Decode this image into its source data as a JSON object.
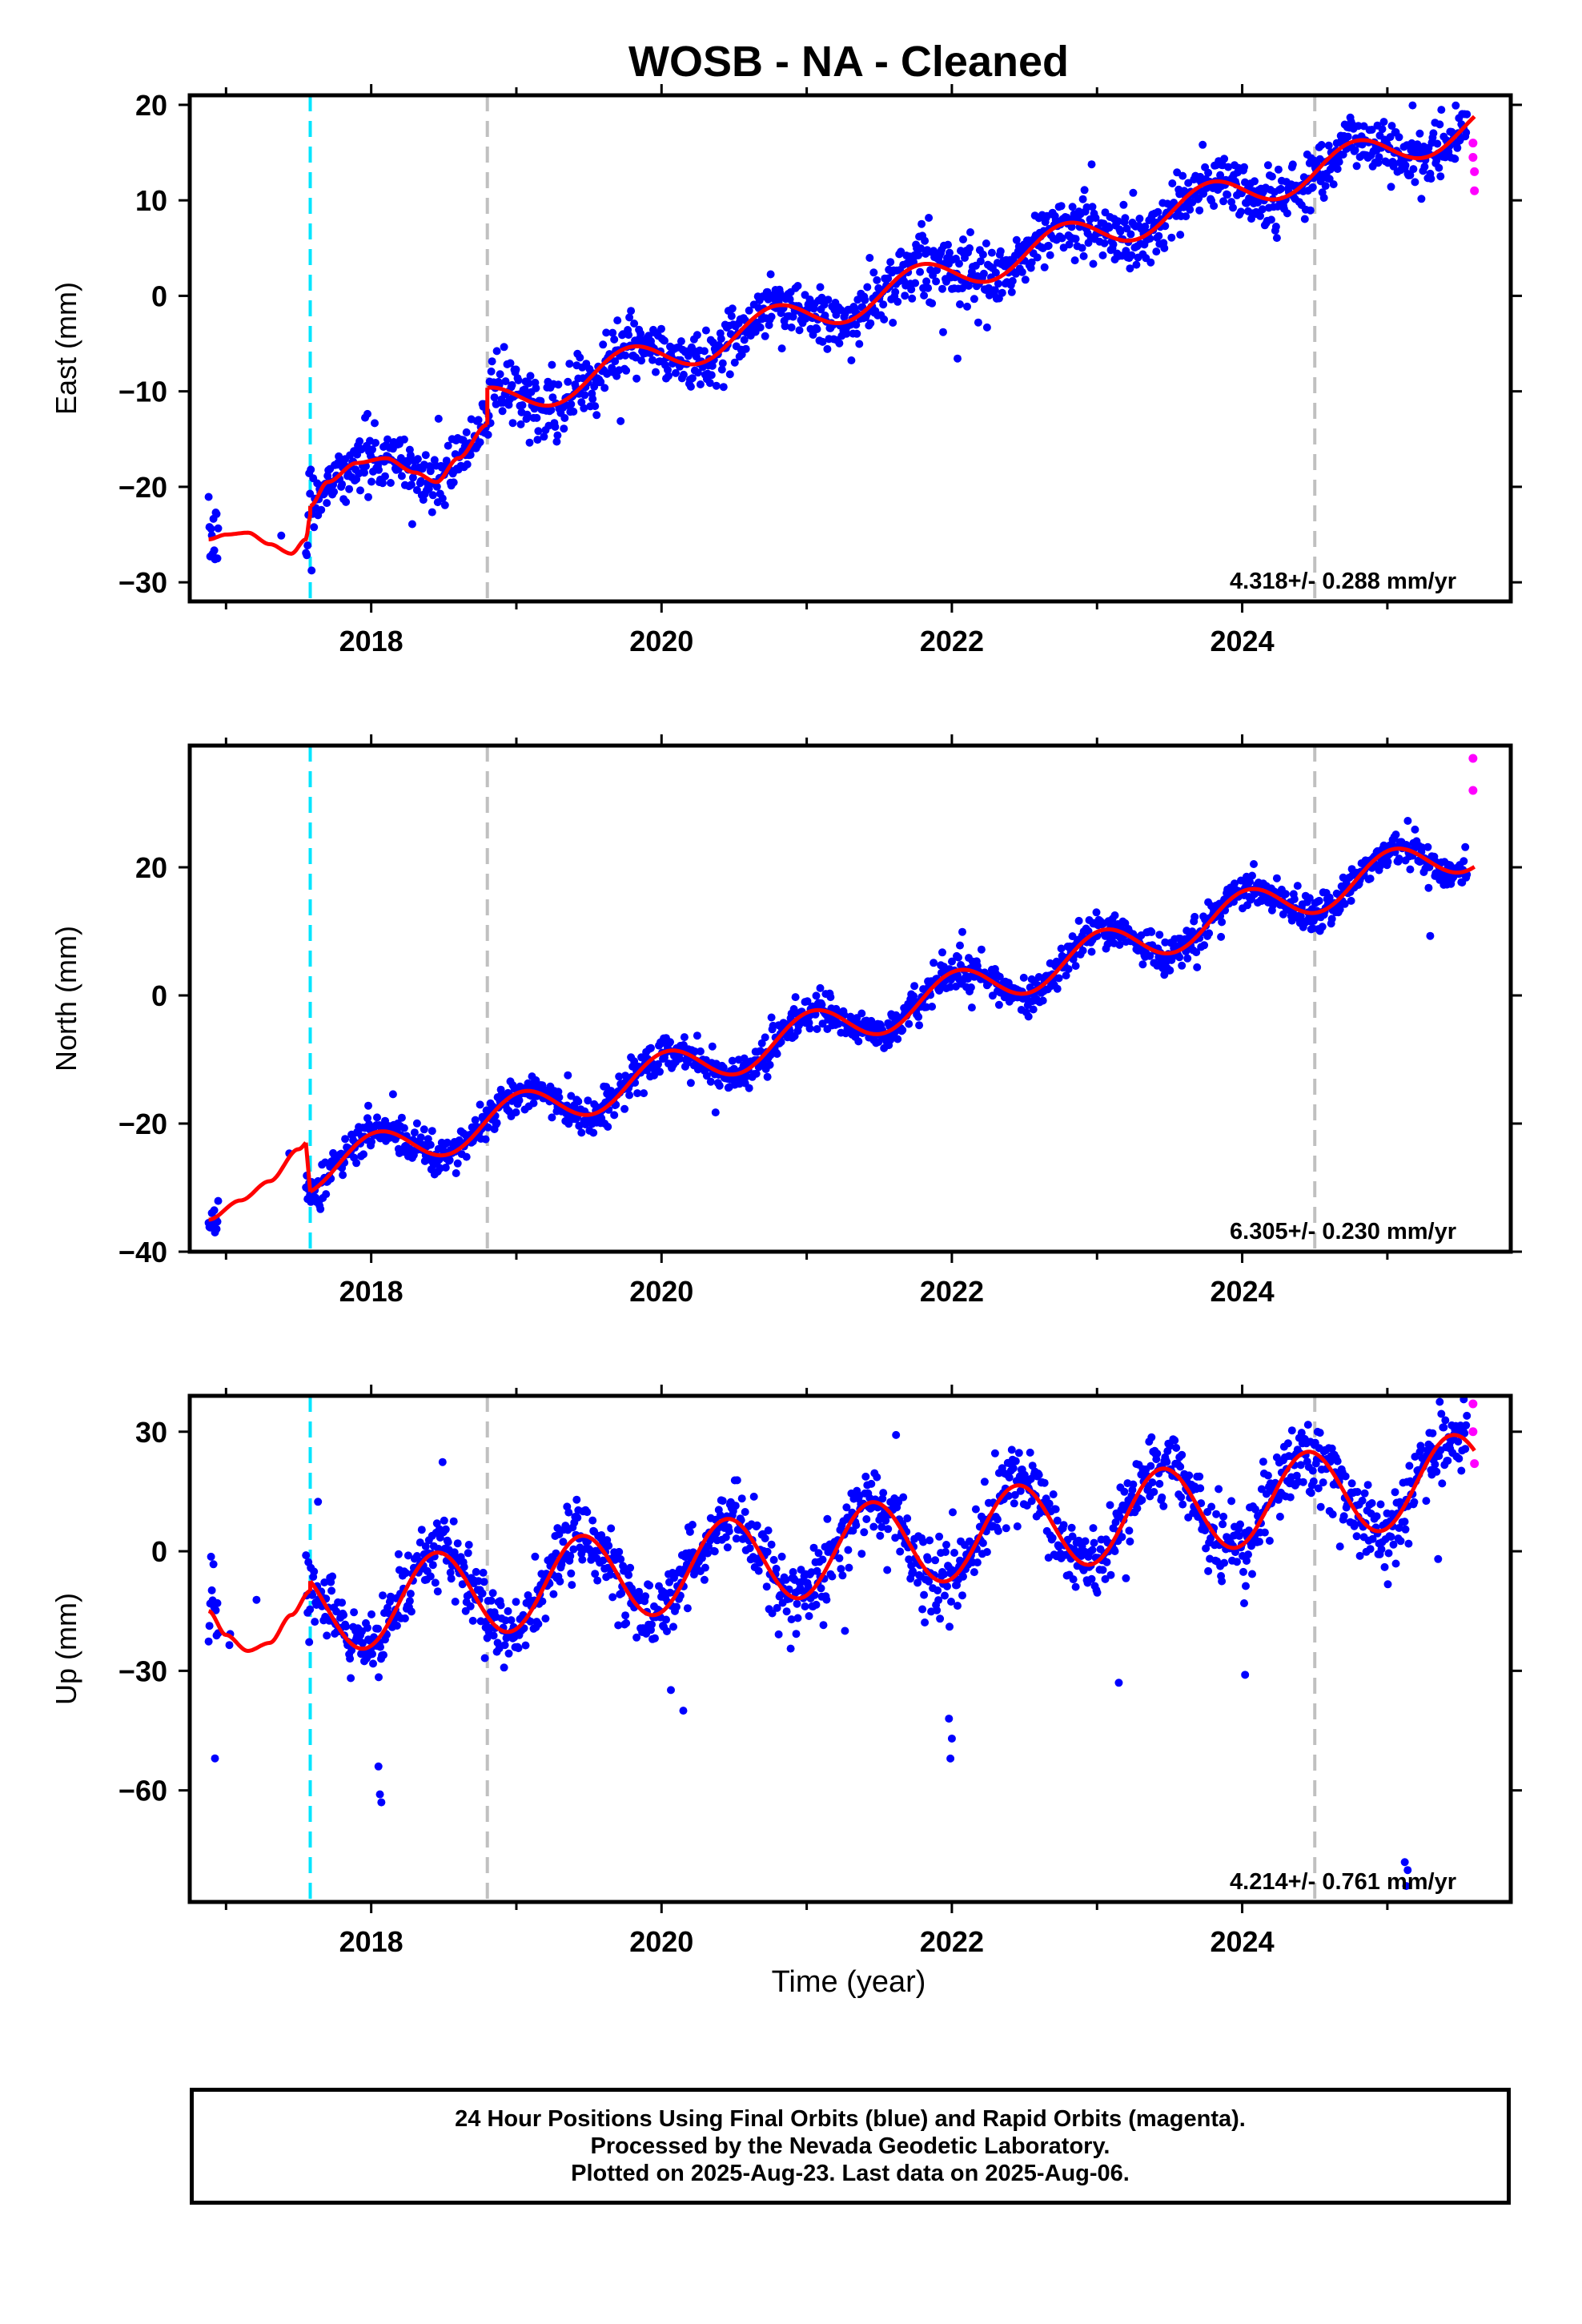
{
  "title": "WOSB  - NA - Cleaned",
  "colors": {
    "final_orbits": "#0000ff",
    "rapid_orbits": "#ff00ff",
    "model_fit": "#ff0000",
    "antenna_change": "#00e5ff",
    "equipment_change": "#c0c0c0"
  },
  "xlabel": "Time (year)",
  "footer": {
    "line1": "24 Hour Positions Using Final Orbits (blue) and Rapid Orbits (magenta).",
    "line2": "Processed by the Nevada Geodetic Laboratory.",
    "line3": "Plotted on 2025-Aug-23. Last data on 2025-Aug-06."
  },
  "chart_data": [
    {
      "type": "scatter",
      "component": "east",
      "ylabel": "East (mm)",
      "velocity_label": "4.318+/- 0.288 mm/yr",
      "xlim": [
        2016.75,
        2025.85
      ],
      "ylim": [
        -32,
        21
      ],
      "yticks": [
        -30,
        -20,
        -10,
        0,
        10,
        20
      ],
      "xticks": [
        2018,
        2020,
        2022,
        2024
      ],
      "vlines": [
        {
          "x": 2017.58,
          "style": "cyan-dashed"
        },
        {
          "x": 2018.8,
          "style": "gray-dashed"
        },
        {
          "x": 2024.5,
          "style": "gray-dashed"
        }
      ],
      "model_fit": {
        "segments": [
          {
            "start": 2016.88,
            "end": 2017.58,
            "x": [
              2016.88,
              2017.0,
              2017.15,
              2017.3,
              2017.45,
              2017.55,
              2017.58
            ],
            "y": [
              -25.5,
              -25.0,
              -24.8,
              -26.0,
              -27.0,
              -25.5,
              -23.0
            ]
          },
          {
            "start": 2017.58,
            "end": 2018.8,
            "x": [
              2017.58,
              2017.7,
              2017.9,
              2018.1,
              2018.3,
              2018.45,
              2018.6,
              2018.8
            ],
            "y": [
              -22.0,
              -19.5,
              -17.5,
              -17.0,
              -18.5,
              -19.5,
              -17.0,
              -13.5
            ]
          },
          {
            "start": 2018.8,
            "end": 2025.6,
            "trend": 4.318,
            "y0": -11.5,
            "amp": 1.9,
            "phase": 0.52
          }
        ]
      },
      "final_orbits": {
        "range": [
          2016.88,
          2025.55
        ],
        "scatter_sd": 1.6
      },
      "rapid_orbits": [
        {
          "x": 2025.59,
          "y": 16.0
        },
        {
          "x": 2025.59,
          "y": 14.5
        },
        {
          "x": 2025.6,
          "y": 13.0
        },
        {
          "x": 2025.6,
          "y": 11.0
        }
      ]
    },
    {
      "type": "scatter",
      "component": "north",
      "ylabel": "North (mm)",
      "velocity_label": "6.305+/- 0.230 mm/yr",
      "xlim": [
        2016.75,
        2025.85
      ],
      "ylim": [
        -40,
        39
      ],
      "yticks": [
        -40,
        -20,
        0,
        20
      ],
      "xticks": [
        2018,
        2020,
        2022,
        2024
      ],
      "vlines": [
        {
          "x": 2017.58,
          "style": "cyan-dashed"
        },
        {
          "x": 2018.8,
          "style": "gray-dashed"
        },
        {
          "x": 2024.5,
          "style": "gray-dashed"
        }
      ],
      "model_fit": {
        "segments": [
          {
            "start": 2016.88,
            "end": 2017.55,
            "x": [
              2016.88,
              2017.1,
              2017.3,
              2017.5,
              2017.58
            ],
            "y": [
              -35.0,
              -32.0,
              -29.0,
              -24.0,
              -22.5
            ]
          },
          {
            "start": 2017.58,
            "end": 2025.6,
            "trend": 6.305,
            "y0": -27.5,
            "amp": 3.3,
            "phase": 0.78
          }
        ]
      },
      "final_orbits": {
        "range": [
          2016.88,
          2025.55
        ],
        "scatter_sd": 1.4
      },
      "rapid_orbits": [
        {
          "x": 2025.59,
          "y": 37.0
        },
        {
          "x": 2025.59,
          "y": 32.0
        }
      ]
    },
    {
      "type": "scatter",
      "component": "up",
      "ylabel": "Up (mm)",
      "velocity_label": "4.214+/- 0.761 mm/yr",
      "xlim": [
        2016.75,
        2025.85
      ],
      "ylim": [
        -88,
        39
      ],
      "yticks": [
        -60,
        -30,
        0,
        30
      ],
      "xticks": [
        2018,
        2020,
        2022,
        2024
      ],
      "vlines": [
        {
          "x": 2017.58,
          "style": "cyan-dashed"
        },
        {
          "x": 2018.8,
          "style": "gray-dashed"
        },
        {
          "x": 2024.5,
          "style": "gray-dashed"
        }
      ],
      "model_fit": {
        "segments": [
          {
            "start": 2016.88,
            "end": 2017.58,
            "x": [
              2016.88,
              2017.0,
              2017.15,
              2017.3,
              2017.45,
              2017.58
            ],
            "y": [
              -15.0,
              -21.0,
              -25.0,
              -23.0,
              -16.0,
              -10.0
            ]
          },
          {
            "start": 2017.58,
            "end": 2025.6,
            "trend": 4.214,
            "y0": -15.0,
            "amp": 11.0,
            "phase": 0.2
          }
        ]
      },
      "final_orbits": {
        "range": [
          2016.88,
          2025.55
        ],
        "scatter_sd": 4.5
      },
      "outliers": [
        {
          "x": 2018.05,
          "y": -54
        },
        {
          "x": 2018.06,
          "y": -61
        },
        {
          "x": 2018.07,
          "y": -63
        },
        {
          "x": 2021.98,
          "y": -42
        },
        {
          "x": 2022.0,
          "y": -47
        },
        {
          "x": 2021.99,
          "y": -52
        },
        {
          "x": 2025.12,
          "y": -78
        },
        {
          "x": 2025.14,
          "y": -80
        },
        {
          "x": 2025.13,
          "y": -84
        },
        {
          "x": 2024.02,
          "y": -31
        },
        {
          "x": 2020.15,
          "y": -40
        },
        {
          "x": 2023.15,
          "y": -33
        }
      ],
      "rapid_orbits": [
        {
          "x": 2025.59,
          "y": 37.0
        },
        {
          "x": 2025.59,
          "y": 30.0
        },
        {
          "x": 2025.6,
          "y": 22.0
        }
      ]
    }
  ]
}
